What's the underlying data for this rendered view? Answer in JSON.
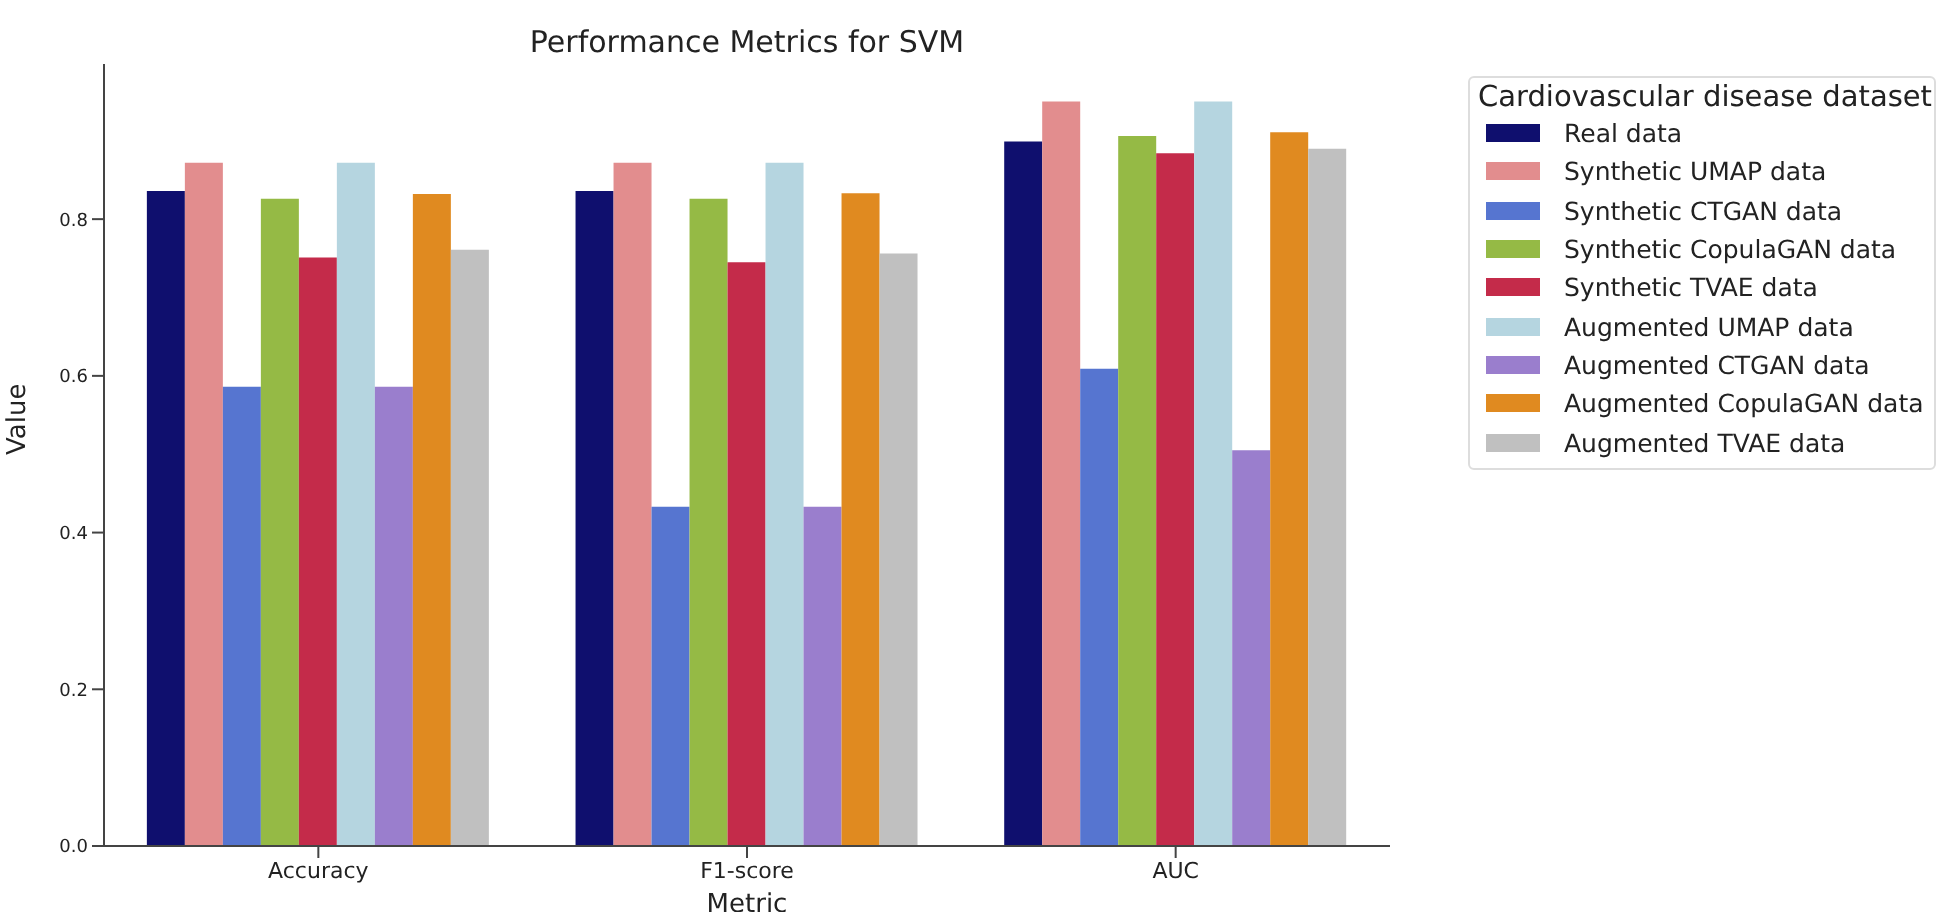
{
  "chart_data": {
    "type": "bar",
    "title": "Performance Metrics for SVM",
    "xlabel": "Metric",
    "ylabel": "Value",
    "legend_title": "Cardiovascular disease dataset",
    "legend": "top right",
    "categories": [
      "Accuracy",
      "F1-score",
      "AUC"
    ],
    "series": [
      {
        "name": "Real data",
        "color": "#0f0f6e",
        "values": [
          0.836,
          0.836,
          0.899
        ]
      },
      {
        "name": "Synthetic UMAP data",
        "color": "#e28d8e",
        "values": [
          0.872,
          0.872,
          0.95
        ]
      },
      {
        "name": "Synthetic CTGAN data",
        "color": "#5675d0",
        "values": [
          0.586,
          0.433,
          0.609
        ]
      },
      {
        "name": "Synthetic CopulaGAN data",
        "color": "#95ba45",
        "values": [
          0.826,
          0.826,
          0.906
        ]
      },
      {
        "name": "Synthetic TVAE data",
        "color": "#c42b4a",
        "values": [
          0.751,
          0.745,
          0.884
        ]
      },
      {
        "name": "Augmented UMAP data",
        "color": "#b5d5e0",
        "values": [
          0.872,
          0.872,
          0.95
        ]
      },
      {
        "name": "Augmented CTGAN data",
        "color": "#9a7ecd",
        "values": [
          0.586,
          0.433,
          0.505
        ]
      },
      {
        "name": "Augmented CopulaGAN data",
        "color": "#e08a20",
        "values": [
          0.832,
          0.833,
          0.911
        ]
      },
      {
        "name": "Augmented TVAE data",
        "color": "#c0c0c0",
        "values": [
          0.761,
          0.756,
          0.89
        ]
      }
    ],
    "ylim": [
      0,
      0.998
    ],
    "yticks": [
      {
        "value": 0,
        "label": "0.0"
      },
      0.2,
      0.4,
      0.6,
      0.8
    ],
    "grid": false
  }
}
